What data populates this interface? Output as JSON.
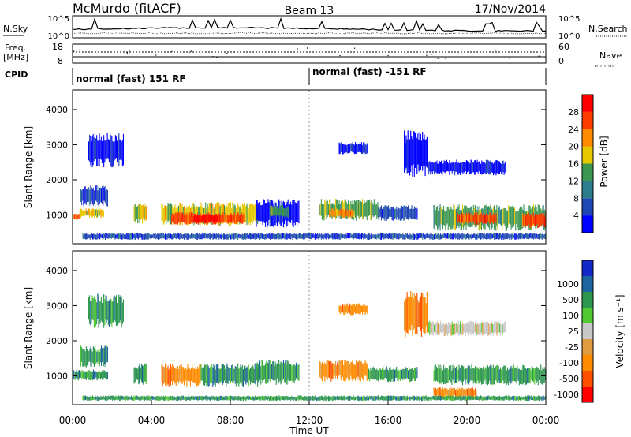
{
  "header": {
    "station": "McMurdo (fitACF)",
    "beam": "Beam 13",
    "date": "17/Nov/2014"
  },
  "top_panel": {
    "left_label": "N.Sky",
    "right_label": "N.Search",
    "left_ticks": [
      "10^5",
      "10^0"
    ],
    "right_ticks": [
      "10^5",
      "10^0"
    ]
  },
  "freq_panel": {
    "left_label_1": "Freq.",
    "left_label_2": "[MHz]",
    "right_label": "Nave",
    "left_ticks": [
      "18",
      "8"
    ],
    "right_ticks": [
      "60",
      "0"
    ]
  },
  "cpid": {
    "label": "CPID",
    "segments": [
      {
        "start_hour": 0,
        "text": "normal (fast) 151 RF"
      },
      {
        "start_hour": 12,
        "text": "normal (fast) -151 RF"
      }
    ]
  },
  "colors": {
    "power": [
      "#0000ff",
      "#1e46b4",
      "#2d7d8c",
      "#3c9650",
      "#e6c800",
      "#ff8c00",
      "#ff3c00",
      "#ff0000"
    ],
    "velocity": [
      "#ff0000",
      "#ff5000",
      "#ff8c00",
      "#e09a40",
      "#c8c8c8",
      "#50c832",
      "#2d9650",
      "#1e64a0",
      "#1428c8"
    ]
  },
  "chart_data": [
    {
      "type": "heatmap",
      "name": "Power",
      "ylabel": "Slant Range [km]",
      "xlabel": "",
      "x_range_hours": [
        0,
        24
      ],
      "ylim": [
        180,
        4560
      ],
      "y_ticks": [
        "1000",
        "2000",
        "3000",
        "4000"
      ],
      "colorbar_label": "Power [dB]",
      "colorbar_ticks": [
        "4",
        "8",
        "12",
        "16",
        "20",
        "24",
        "28"
      ],
      "regions": [
        {
          "t0": 0.0,
          "t1": 0.35,
          "r0": 850,
          "r1": 1050,
          "level": 6
        },
        {
          "t0": 0.35,
          "t1": 1.6,
          "r0": 900,
          "r1": 1200,
          "level": 4
        },
        {
          "t0": 0.4,
          "t1": 1.8,
          "r0": 1200,
          "r1": 1900,
          "level": 1
        },
        {
          "t0": 0.8,
          "t1": 2.6,
          "r0": 2300,
          "r1": 3400,
          "level": 0
        },
        {
          "t0": 3.1,
          "t1": 3.8,
          "r0": 700,
          "r1": 1400,
          "level": 4
        },
        {
          "t0": 4.5,
          "t1": 9.5,
          "r0": 650,
          "r1": 1400,
          "level": 4
        },
        {
          "t0": 5.0,
          "t1": 8.7,
          "r0": 700,
          "r1": 1100,
          "level": 6
        },
        {
          "t0": 6.0,
          "t1": 7.5,
          "r0": 750,
          "r1": 1050,
          "level": 7
        },
        {
          "t0": 9.3,
          "t1": 11.5,
          "r0": 600,
          "r1": 1500,
          "level": 0
        },
        {
          "t0": 10.0,
          "t1": 11.0,
          "r0": 900,
          "r1": 1300,
          "level": 3
        },
        {
          "t0": 12.5,
          "t1": 15.5,
          "r0": 800,
          "r1": 1500,
          "level": 3
        },
        {
          "t0": 13.0,
          "t1": 14.3,
          "r0": 900,
          "r1": 1200,
          "level": 5
        },
        {
          "t0": 13.5,
          "t1": 15.0,
          "r0": 2700,
          "r1": 3100,
          "level": 0
        },
        {
          "t0": 15.5,
          "t1": 17.5,
          "r0": 800,
          "r1": 1300,
          "level": 1
        },
        {
          "t0": 16.8,
          "t1": 18.0,
          "r0": 2000,
          "r1": 3500,
          "level": 0
        },
        {
          "t0": 18.0,
          "t1": 22.0,
          "r0": 2100,
          "r1": 2600,
          "level": 0
        },
        {
          "t0": 18.3,
          "t1": 24.0,
          "r0": 500,
          "r1": 1350,
          "level": 3
        },
        {
          "t0": 19.5,
          "t1": 21.5,
          "r0": 700,
          "r1": 1100,
          "level": 6
        },
        {
          "t0": 22.8,
          "t1": 24.0,
          "r0": 600,
          "r1": 1100,
          "level": 6
        },
        {
          "t0": 0.5,
          "t1": 24.0,
          "r0": 280,
          "r1": 500,
          "level": 1
        }
      ]
    },
    {
      "type": "heatmap",
      "name": "Velocity",
      "ylabel": "Slant Range [km]",
      "xlabel": "Time UT",
      "x_range_hours": [
        0,
        24
      ],
      "x_ticks": [
        "00:00",
        "04:00",
        "08:00",
        "12:00",
        "16:00",
        "20:00",
        "00:00"
      ],
      "ylim": [
        180,
        4560
      ],
      "y_ticks": [
        "1000",
        "2000",
        "3000",
        "4000"
      ],
      "colorbar_label": "Velocity [m s⁻¹]",
      "colorbar_ticks": [
        "1000",
        "500",
        "100",
        "25",
        "-25",
        "-100",
        "-500",
        "-1000"
      ],
      "regions": [
        {
          "t0": 0.0,
          "t1": 1.8,
          "r0": 850,
          "r1": 1200,
          "level": 6
        },
        {
          "t0": 0.4,
          "t1": 1.8,
          "r0": 1200,
          "r1": 1900,
          "level": 6
        },
        {
          "t0": 0.8,
          "t1": 2.6,
          "r0": 2300,
          "r1": 3400,
          "level": 6
        },
        {
          "t0": 3.1,
          "t1": 3.8,
          "r0": 700,
          "r1": 1400,
          "level": 6
        },
        {
          "t0": 4.5,
          "t1": 6.5,
          "r0": 650,
          "r1": 1400,
          "level": 2
        },
        {
          "t0": 6.5,
          "t1": 9.5,
          "r0": 650,
          "r1": 1400,
          "level": 6
        },
        {
          "t0": 9.3,
          "t1": 11.5,
          "r0": 700,
          "r1": 1500,
          "level": 6
        },
        {
          "t0": 12.5,
          "t1": 15.0,
          "r0": 800,
          "r1": 1500,
          "level": 2
        },
        {
          "t0": 13.5,
          "t1": 15.0,
          "r0": 2700,
          "r1": 3100,
          "level": 2
        },
        {
          "t0": 15.0,
          "t1": 17.5,
          "r0": 800,
          "r1": 1300,
          "level": 6
        },
        {
          "t0": 16.8,
          "t1": 18.0,
          "r0": 2000,
          "r1": 3500,
          "level": 2
        },
        {
          "t0": 18.0,
          "t1": 22.0,
          "r0": 2100,
          "r1": 2600,
          "level": 4
        },
        {
          "t0": 18.3,
          "t1": 24.0,
          "r0": 700,
          "r1": 1350,
          "level": 6
        },
        {
          "t0": 18.3,
          "t1": 20.5,
          "r0": 350,
          "r1": 700,
          "level": 2
        },
        {
          "t0": 0.5,
          "t1": 24.0,
          "r0": 280,
          "r1": 450,
          "level": 6
        }
      ]
    }
  ]
}
